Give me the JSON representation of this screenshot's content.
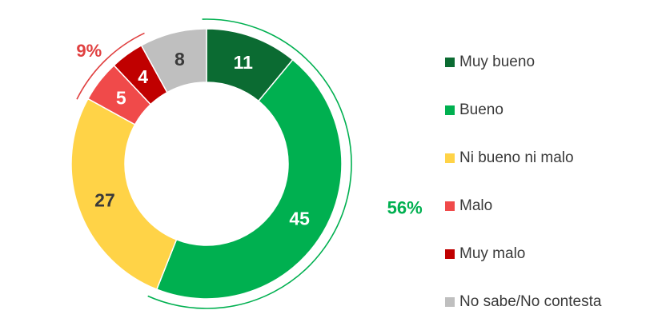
{
  "chart_data": {
    "type": "pie",
    "variant": "donut",
    "categories": [
      "Muy bueno",
      "Bueno",
      "Ni bueno ni malo",
      "Malo",
      "Muy malo",
      "No sabe/No contesta"
    ],
    "values": [
      11,
      45,
      27,
      5,
      4,
      8
    ],
    "labels": [
      "11",
      "45",
      "27",
      "5",
      "4",
      "8"
    ],
    "colors": [
      "#0b6b32",
      "#00b050",
      "#ffd347",
      "#f04a4a",
      "#c00000",
      "#bfbfbf"
    ],
    "label_colors": [
      "#ffffff",
      "#ffffff",
      "#3a3a3a",
      "#ffffff",
      "#ffffff",
      "#3a3a3a"
    ],
    "legend_position": "right",
    "annotations": [
      {
        "text": "56%",
        "color": "#00b050",
        "covers": [
          "Muy bueno",
          "Bueno"
        ]
      },
      {
        "text": "9%",
        "color": "#e04040",
        "covers": [
          "Malo",
          "Muy malo"
        ]
      }
    ]
  }
}
